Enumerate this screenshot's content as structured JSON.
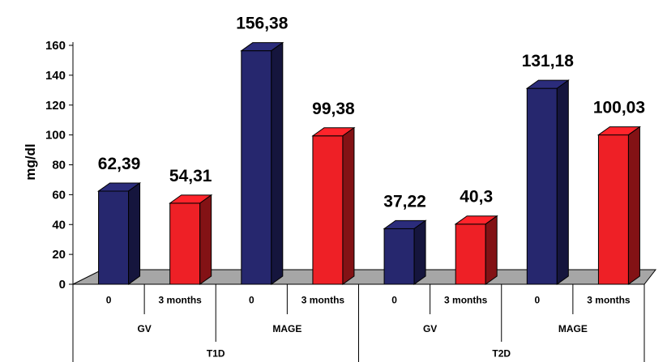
{
  "chart_data": {
    "type": "bar",
    "ylabel": "mg/dl",
    "ylim": [
      0,
      160
    ],
    "yticks": [
      0,
      20,
      40,
      60,
      80,
      100,
      120,
      140,
      160
    ],
    "grid": false,
    "legend": "none",
    "categories": [
      "0",
      "3 months",
      "0",
      "3 months",
      "0",
      "3 months",
      "0",
      "3 months"
    ],
    "values": [
      62.39,
      54.31,
      156.38,
      99.38,
      37.22,
      40.3,
      131.18,
      100.03
    ],
    "value_labels": [
      "62,39",
      "54,31",
      "156,38",
      "99,38",
      "37,22",
      "40,3",
      "131,18",
      "100,03"
    ],
    "group_level_1": [
      "GV",
      "MAGE",
      "GV",
      "MAGE"
    ],
    "group_level_2": [
      "T1D",
      "T2D"
    ],
    "colors": {
      "baseline": "#26276e",
      "three_months": "#ee2026",
      "floor": "#a6a6a6"
    }
  }
}
